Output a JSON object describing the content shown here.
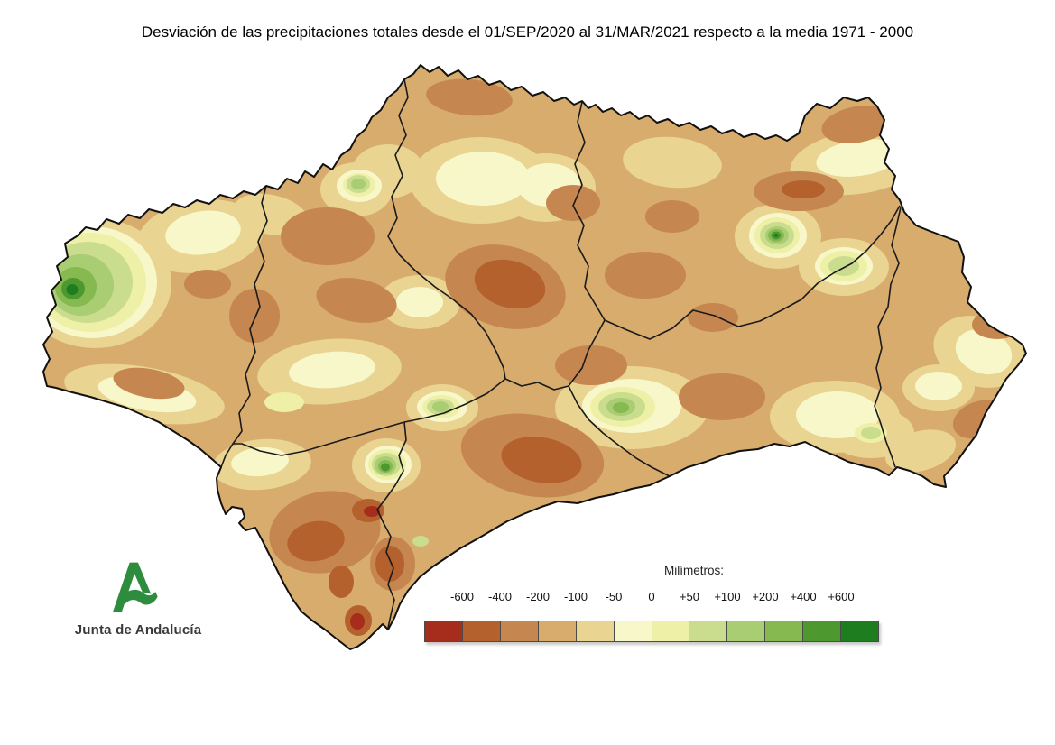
{
  "title": "Desviación de las precipitaciones totales desde el 01/SEP/2020 al 31/MAR/2021 respecto a la media 1971 - 2000",
  "legend": {
    "title": "Milímetros:",
    "ticks": [
      "-600",
      "-400",
      "-200",
      "-100",
      "-50",
      "0",
      "+50",
      "+100",
      "+200",
      "+400",
      "+600"
    ],
    "colors": [
      "#A62C1B",
      "#B5612E",
      "#C5874F",
      "#D8AC6C",
      "#E9D492",
      "#F8F7C9",
      "#EFF0A7",
      "#CADC8D",
      "#A8CD73",
      "#86B94F",
      "#4D9930",
      "#1E7D1F"
    ]
  },
  "logo": {
    "text": "Junta de Andalucía",
    "color": "#2E8C3E"
  },
  "map": {
    "region": "Andalucía",
    "base_color": "#D8AC6C",
    "border_color": "#1a1a1a",
    "sea_color": "#FFFFFF"
  }
}
